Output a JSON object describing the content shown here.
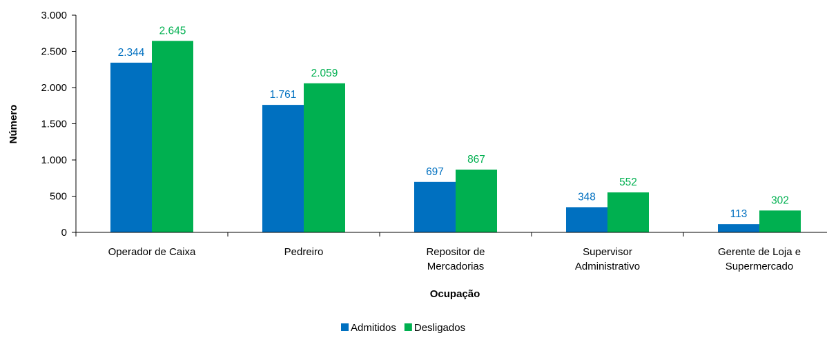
{
  "chart_data": {
    "type": "bar",
    "categories": [
      [
        "Operador de Caixa"
      ],
      [
        "Pedreiro"
      ],
      [
        "Repositor de",
        "Mercadorias"
      ],
      [
        "Supervisor",
        "Administrativo"
      ],
      [
        "Gerente de Loja e",
        "Supermercado"
      ]
    ],
    "series": [
      {
        "name": "Admitidos",
        "values": [
          2344,
          1761,
          697,
          348,
          113
        ],
        "labels": [
          "2.344",
          "1.761",
          "697",
          "348",
          "113"
        ],
        "color": "#0070C0"
      },
      {
        "name": "Desligados",
        "values": [
          2645,
          2059,
          867,
          552,
          302
        ],
        "labels": [
          "2.645",
          "2.059",
          "867",
          "552",
          "302"
        ],
        "color": "#00B050"
      }
    ],
    "yticks": [
      {
        "value": 0,
        "label": "0"
      },
      {
        "value": 500,
        "label": "500"
      },
      {
        "value": 1000,
        "label": "1.000"
      },
      {
        "value": 1500,
        "label": "1.500"
      },
      {
        "value": 2000,
        "label": "2.000"
      },
      {
        "value": 2500,
        "label": "2.500"
      },
      {
        "value": 3000,
        "label": "3.000"
      }
    ],
    "ylim": [
      0,
      3000
    ],
    "xlabel": "Ocupação",
    "ylabel": "Número",
    "grid": false,
    "legend_position": "bottom-center"
  }
}
